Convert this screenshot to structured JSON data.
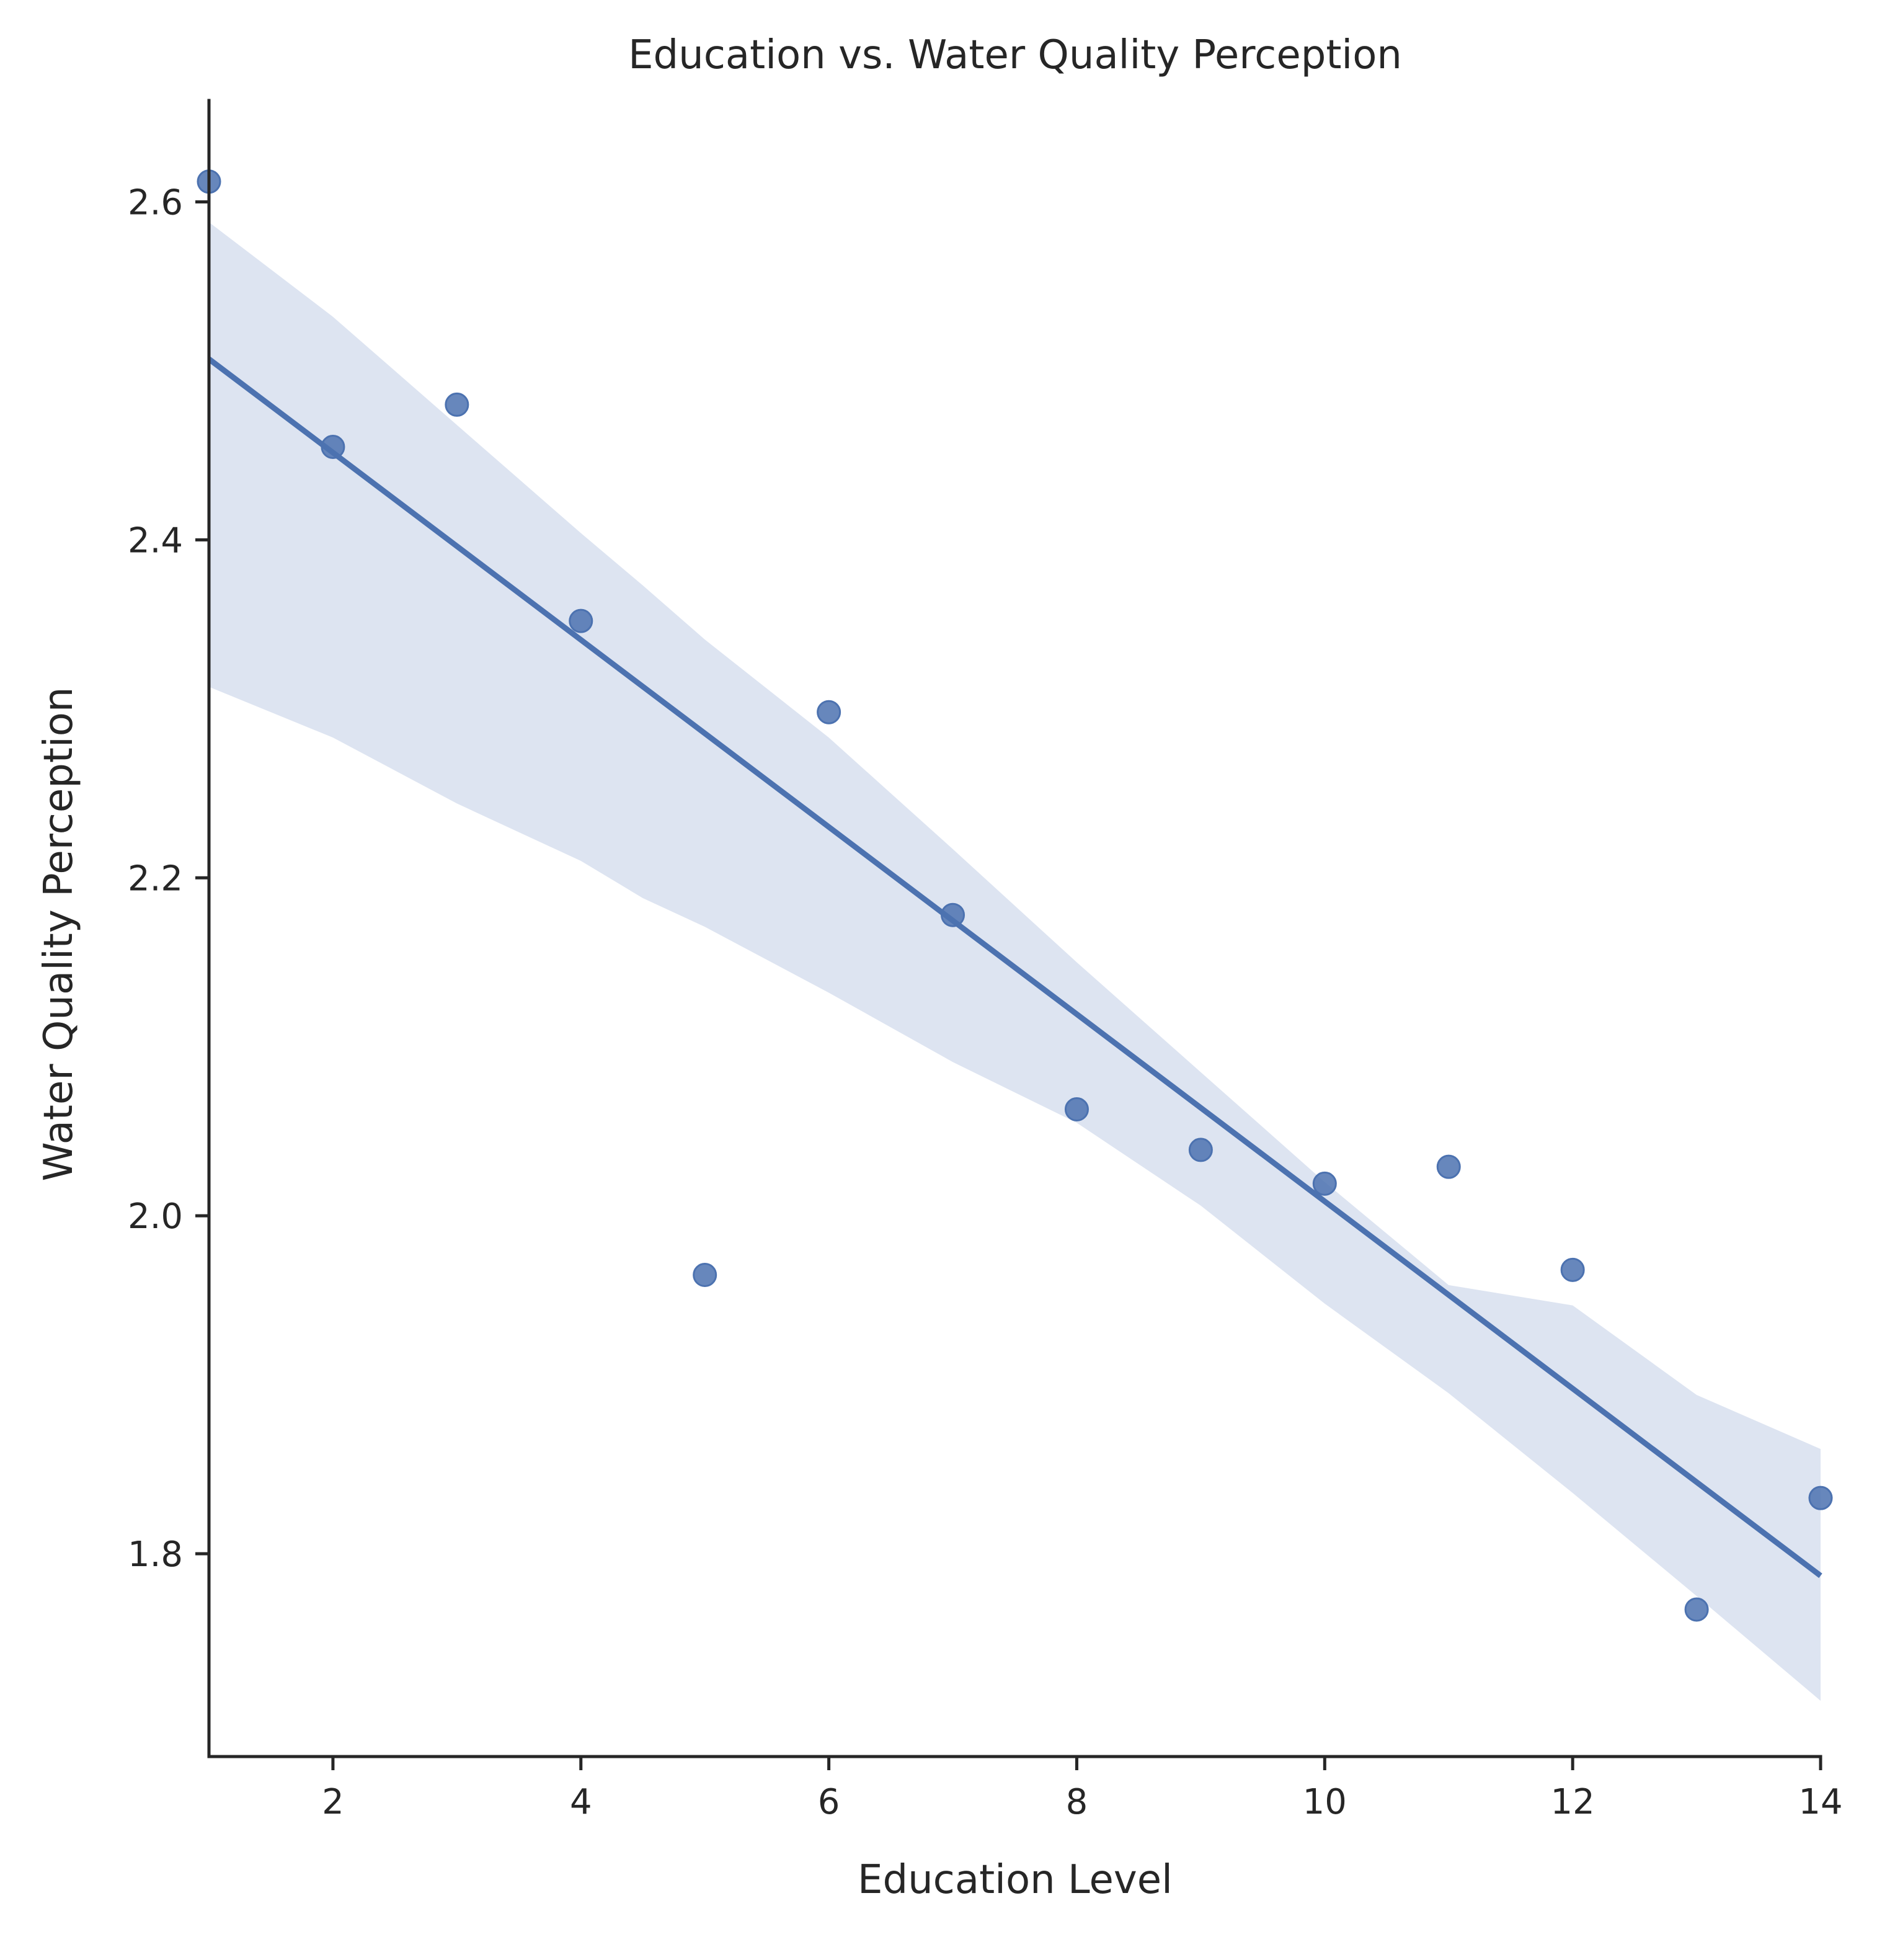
{
  "chart_data": {
    "type": "scatter",
    "title": "Education vs. Water Quality Perception",
    "xlabel": "Education Level",
    "ylabel": "Water Quality Perception",
    "xlim": [
      1,
      14
    ],
    "ylim": [
      1.68,
      2.66
    ],
    "xticks": [
      2,
      4,
      6,
      8,
      10,
      12,
      14
    ],
    "yticks": [
      1.8,
      2.0,
      2.2,
      2.4,
      2.6
    ],
    "grid": false,
    "colors": {
      "points": "#4c72b0",
      "line": "#4c72b0",
      "band": "#dde4f1",
      "axis": "#262626"
    },
    "points": {
      "x": [
        1,
        2,
        3,
        4,
        5,
        6,
        7,
        8,
        9,
        10,
        11,
        12,
        13,
        14
      ],
      "y": [
        2.612,
        2.455,
        2.48,
        2.352,
        1.965,
        2.298,
        2.178,
        2.063,
        2.039,
        2.019,
        2.029,
        1.968,
        1.767,
        1.833
      ]
    },
    "regression": {
      "x": [
        1,
        14
      ],
      "y": [
        2.507,
        1.787
      ]
    },
    "confidence_band": {
      "x": [
        1,
        2,
        3,
        4,
        4.5,
        5,
        6,
        7,
        8,
        9,
        10,
        11,
        12,
        13,
        14
      ],
      "upper": [
        2.588,
        2.532,
        2.468,
        2.404,
        2.373,
        2.341,
        2.283,
        2.217,
        2.15,
        2.085,
        2.02,
        1.959,
        1.947,
        1.894,
        1.862
      ],
      "lower": [
        2.313,
        2.283,
        2.244,
        2.21,
        2.188,
        2.171,
        2.132,
        2.091,
        2.055,
        2.006,
        1.948,
        1.895,
        1.836,
        1.775,
        1.713
      ]
    }
  }
}
